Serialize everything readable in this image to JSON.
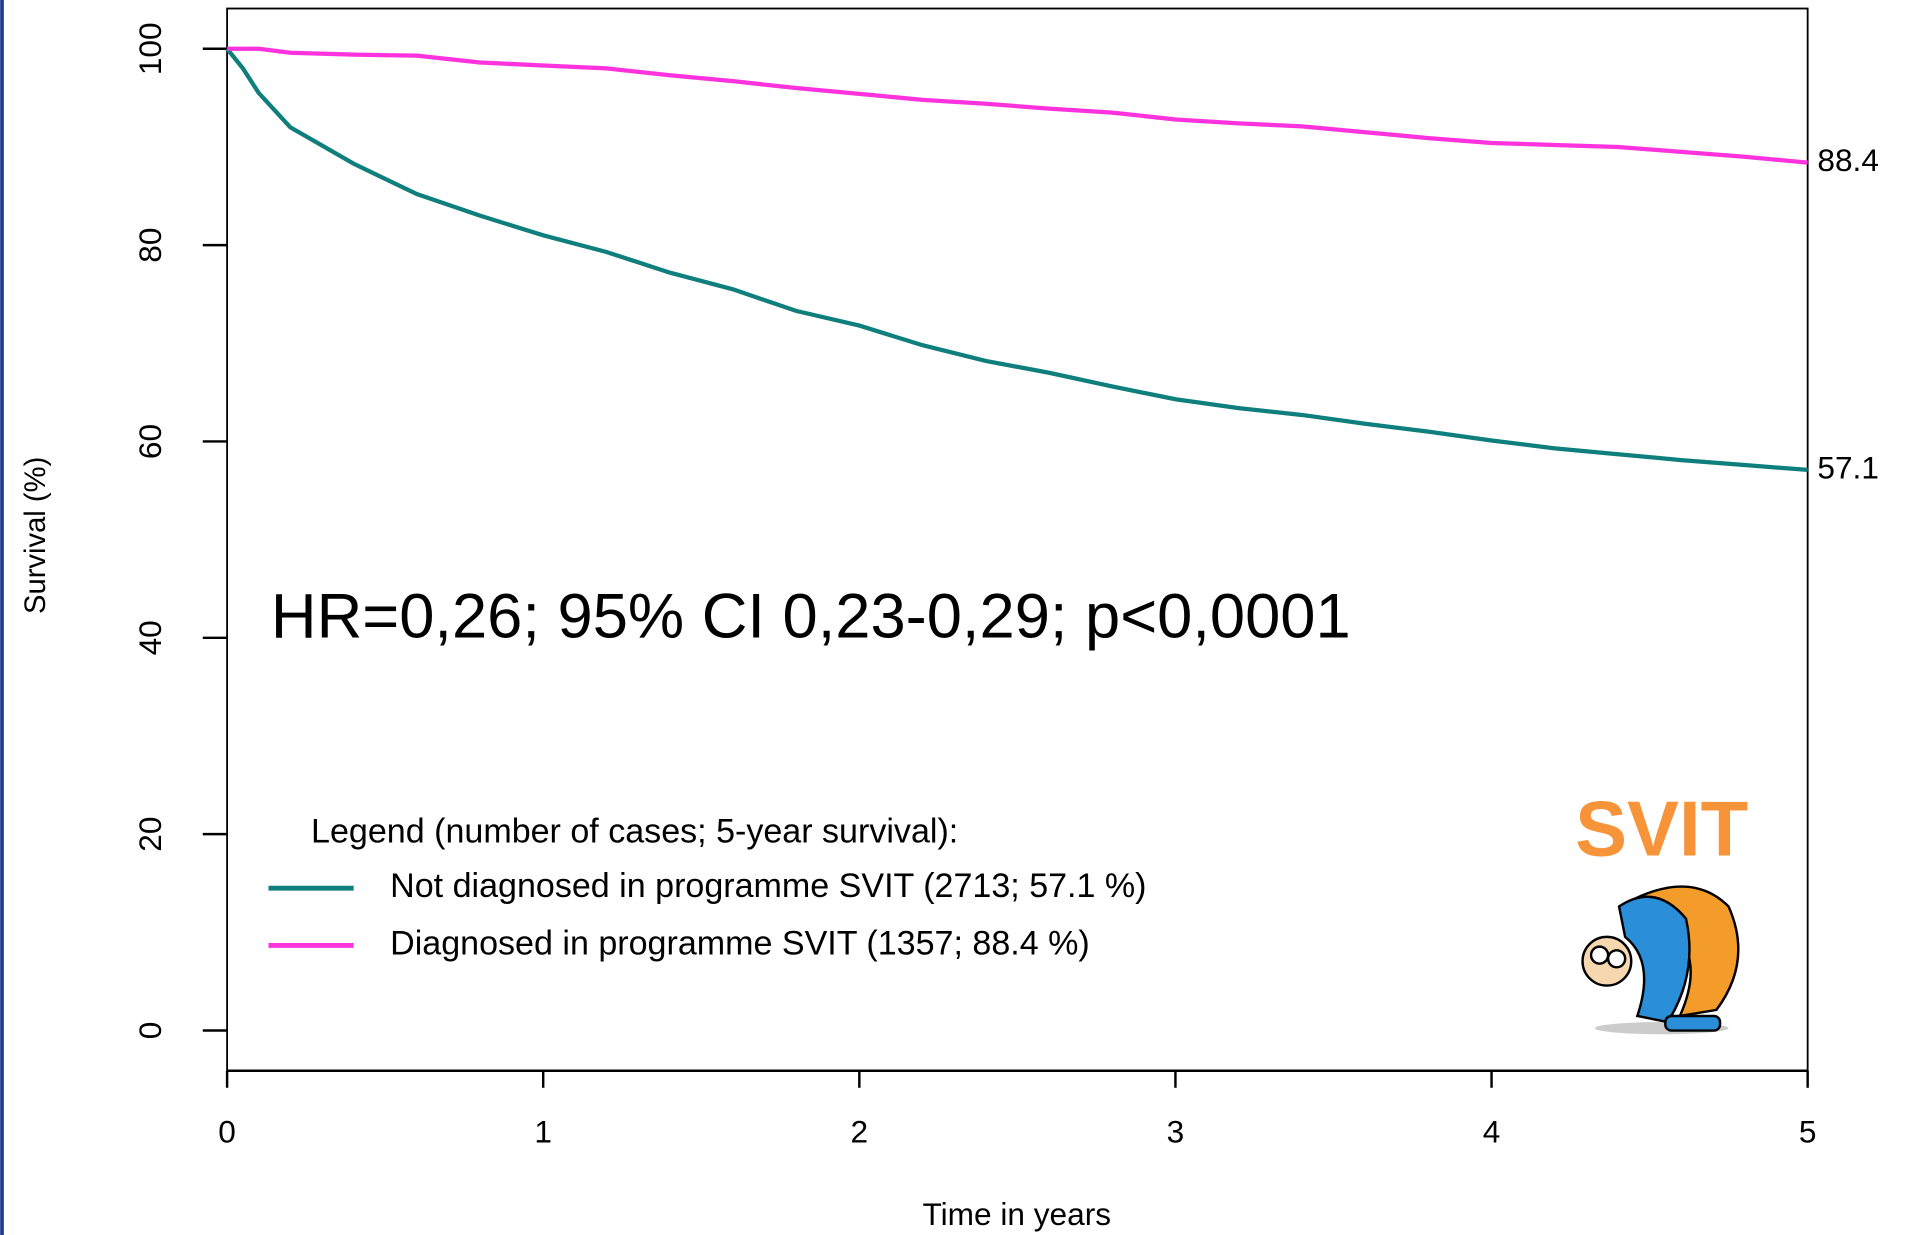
{
  "chart_data": {
    "type": "line",
    "x_label": "Time in years",
    "y_label": "Survival (%)",
    "annotation": "HR=0,26; 95% CI 0,23-0,29; p<0,0001",
    "legend_title": "Legend (number of cases; 5-year survival):",
    "logo_text": "SVIT",
    "x": [
      0,
      0.05,
      0.1,
      0.2,
      0.4,
      0.6,
      0.8,
      1.0,
      1.2,
      1.4,
      1.6,
      1.8,
      2.0,
      2.2,
      2.4,
      2.6,
      2.8,
      3.0,
      3.2,
      3.4,
      3.6,
      3.8,
      4.0,
      4.2,
      4.4,
      4.6,
      4.8,
      5.0
    ],
    "series": [
      {
        "name": "Not diagnosed in programme SVIT (2713; 57.1 %)",
        "color": "#0e7f7c",
        "values": [
          100,
          98,
          95.5,
          92,
          88.3,
          85.2,
          83,
          81,
          79.3,
          77.2,
          75.5,
          73.3,
          71.8,
          69.8,
          68.2,
          67,
          65.6,
          64.3,
          63.4,
          62.7,
          61.8,
          61,
          60.1,
          59.3,
          58.7,
          58.1,
          57.6,
          57.1
        ]
      },
      {
        "name": "Diagnosed in programme SVIT (1357; 88.4 %)",
        "color": "#ff33dd",
        "values": [
          100,
          100,
          100,
          99.6,
          99.4,
          99.3,
          98.6,
          98.3,
          98,
          97.3,
          96.7,
          96,
          95.4,
          94.8,
          94.4,
          93.9,
          93.5,
          92.8,
          92.4,
          92.1,
          91.5,
          90.9,
          90.4,
          90.2,
          90,
          89.5,
          89,
          88.4
        ]
      }
    ],
    "xlim": [
      0,
      5
    ],
    "xticks": [
      0,
      1,
      2,
      3,
      4,
      5
    ],
    "ylim": [
      -4.1,
      104.1
    ],
    "yticks": [
      0,
      20,
      40,
      60,
      80,
      100
    ],
    "end_labels": true
  }
}
